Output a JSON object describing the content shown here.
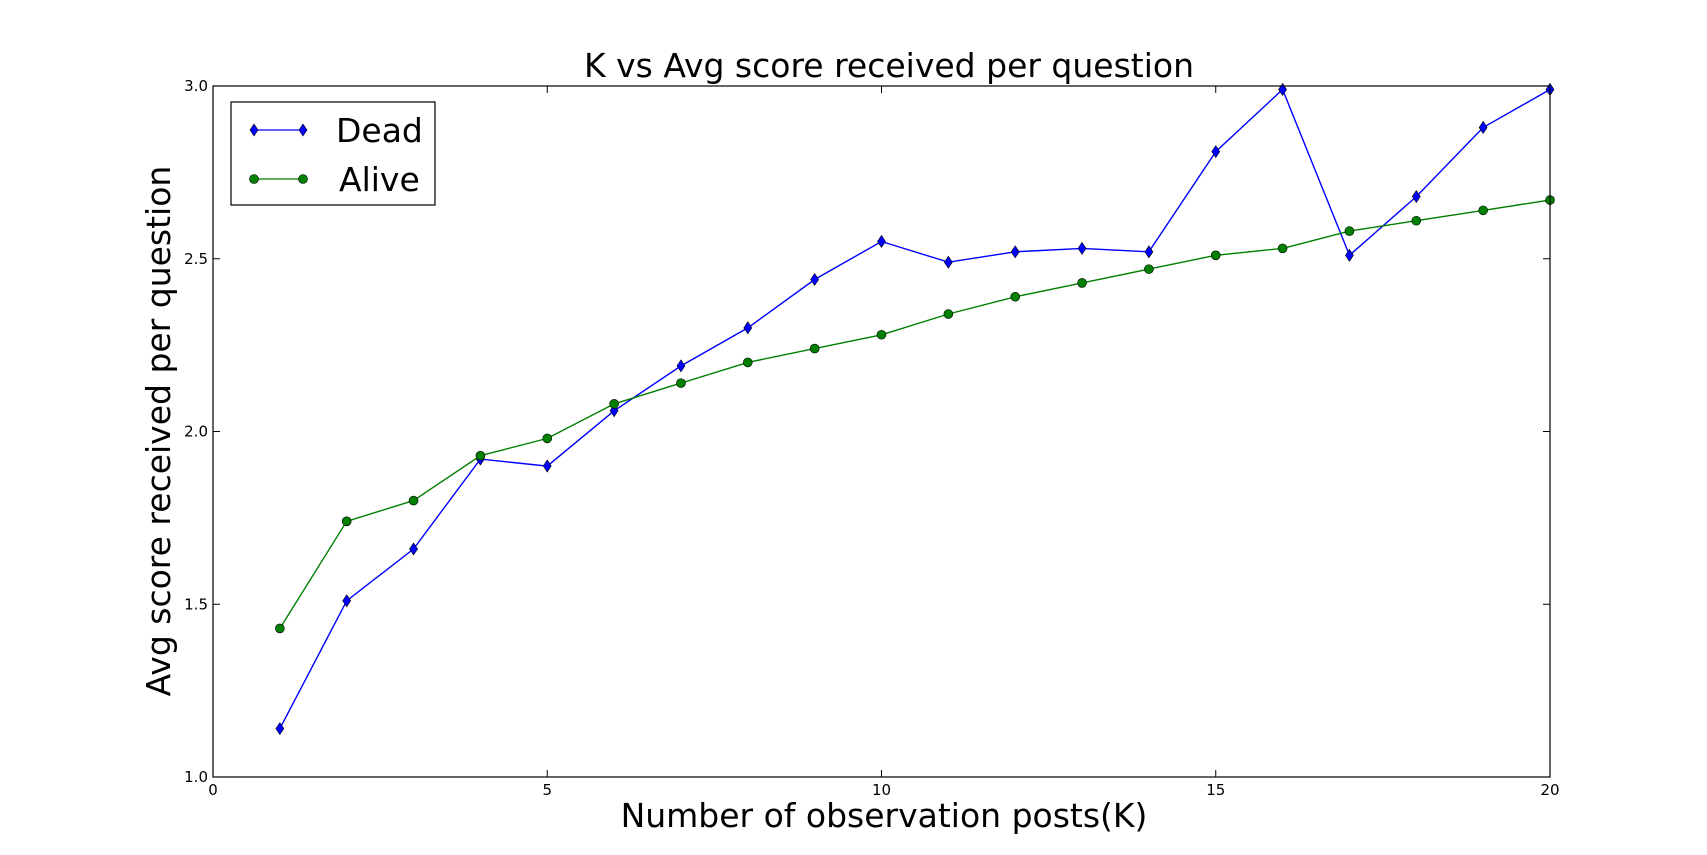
{
  "chart_data": {
    "type": "line",
    "title": "K vs Avg score received per question",
    "xlabel": "Number of observation posts(K)",
    "ylabel": "Avg score received per question",
    "xlim": [
      0,
      20
    ],
    "ylim": [
      1.0,
      3.0
    ],
    "xticks": [
      0,
      5,
      10,
      15,
      20
    ],
    "xtick_labels": [
      "0",
      "5",
      "10",
      "15",
      "20"
    ],
    "yticks": [
      1.0,
      1.5,
      2.0,
      2.5,
      3.0
    ],
    "ytick_labels": [
      "1.0",
      "1.5",
      "2.0",
      "2.5",
      "3.0"
    ],
    "grid": false,
    "legend_position": "top-left",
    "x": [
      1,
      2,
      3,
      4,
      5,
      6,
      7,
      8,
      9,
      10,
      11,
      12,
      13,
      14,
      15,
      16,
      17,
      18,
      19,
      20
    ],
    "series": [
      {
        "name": "Dead",
        "color": "#0000ff",
        "marker": "diamond",
        "values": [
          1.14,
          1.51,
          1.66,
          1.92,
          1.9,
          2.06,
          2.19,
          2.3,
          2.44,
          2.55,
          2.49,
          2.52,
          2.53,
          2.52,
          2.81,
          2.99,
          2.51,
          2.68,
          2.88,
          2.99
        ]
      },
      {
        "name": "Alive",
        "color": "#008000",
        "marker": "circle",
        "values": [
          1.43,
          1.74,
          1.8,
          1.93,
          1.98,
          2.08,
          2.14,
          2.2,
          2.24,
          2.28,
          2.34,
          2.39,
          2.43,
          2.47,
          2.51,
          2.53,
          2.58,
          2.61,
          2.64,
          2.67
        ]
      }
    ]
  }
}
